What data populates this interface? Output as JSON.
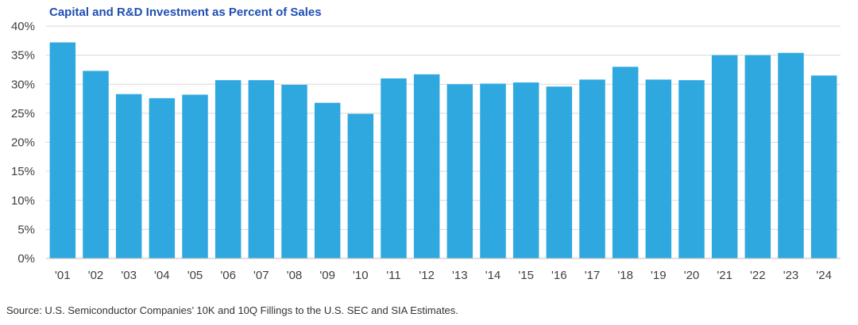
{
  "chart_data": {
    "type": "bar",
    "title": "Capital and R&D Investment as Percent of Sales",
    "xlabel": "",
    "ylabel": "",
    "categories": [
      "'01",
      "'02",
      "'03",
      "'04",
      "'05",
      "'06",
      "'07",
      "'08",
      "'09",
      "'10",
      "'11",
      "'12",
      "'13",
      "'14",
      "'15",
      "'16",
      "'17",
      "'18",
      "'19",
      "'20",
      "'21",
      "'22",
      "'23",
      "'24"
    ],
    "values": [
      37.2,
      32.3,
      28.3,
      27.6,
      28.2,
      30.7,
      30.7,
      29.9,
      26.8,
      24.9,
      31.0,
      31.7,
      30.0,
      30.1,
      30.3,
      29.6,
      30.8,
      33.0,
      30.8,
      30.7,
      35.0,
      35.0,
      35.4,
      31.5
    ],
    "ylim": [
      0,
      40
    ],
    "yticks": [
      0,
      5,
      10,
      15,
      20,
      25,
      30,
      35,
      40
    ],
    "ytick_labels": [
      "0%",
      "5%",
      "10%",
      "15%",
      "20%",
      "25%",
      "30%",
      "35%",
      "40%"
    ],
    "grid": true,
    "legend": "none",
    "bar_color": "#2fa8e0",
    "grid_color": "#d9d9d9",
    "axis_color": "#bfbfbf"
  },
  "footer": {
    "source": "Source: U.S. Semiconductor Companies’ 10K and 10Q Fillings to the U.S. SEC and SIA Estimates."
  }
}
